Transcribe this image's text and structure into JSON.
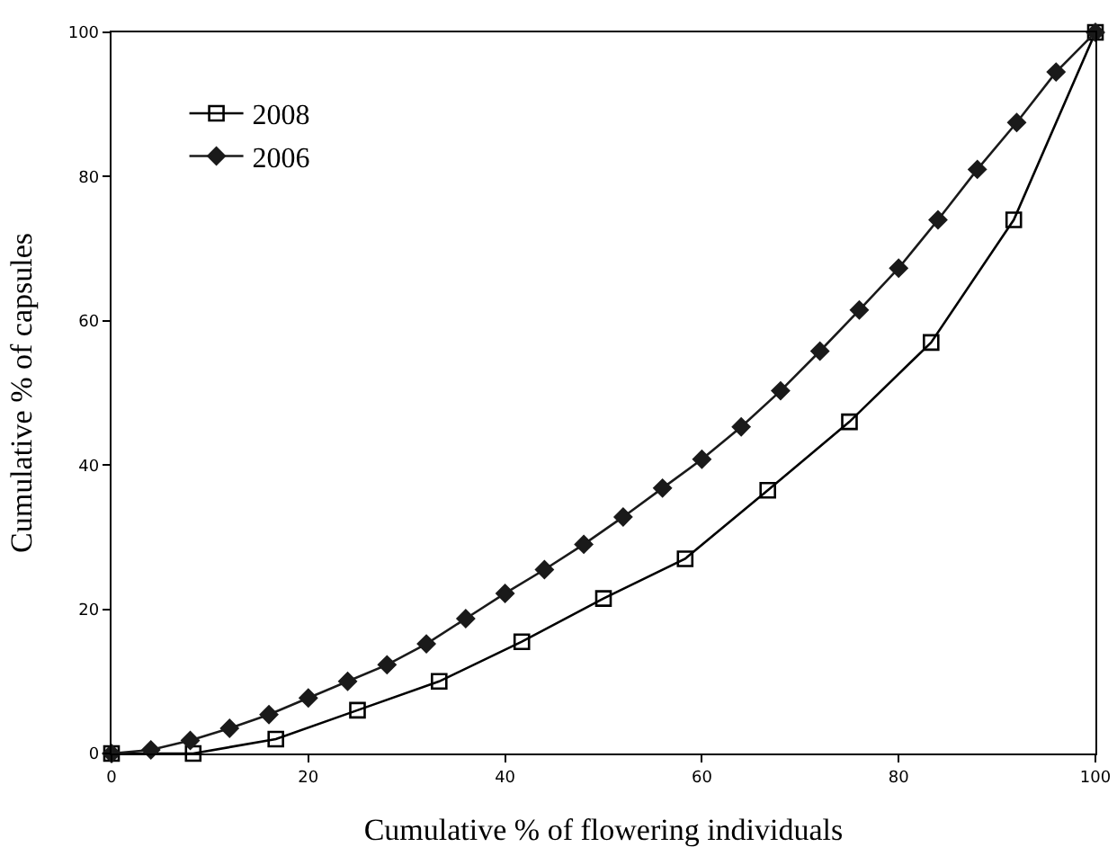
{
  "chart_data": {
    "type": "line",
    "xlabel": "Cumulative % of flowering individuals",
    "ylabel": "Cumulative % of capsules",
    "xlim": [
      0,
      100
    ],
    "xticks": [
      0,
      20,
      40,
      60,
      80,
      100
    ],
    "ylim": [
      0,
      100
    ],
    "yticks": [
      0,
      20,
      40,
      60,
      80,
      100
    ],
    "grid": false,
    "legend": "top left",
    "series": [
      {
        "name": "2008",
        "color": "#000000",
        "marker": "square",
        "x": [
          0,
          8.3,
          16.7,
          25,
          33.3,
          41.7,
          50,
          58.3,
          66.7,
          75,
          83.3,
          91.7,
          100
        ],
        "values": [
          0,
          0,
          2,
          6,
          10,
          15.5,
          21.5,
          27,
          36.5,
          46,
          57,
          74,
          100
        ]
      },
      {
        "name": "2006",
        "color": "#1a1a1a",
        "marker": "diamond",
        "x": [
          0,
          4,
          8,
          12,
          16,
          20,
          24,
          28,
          32,
          36,
          40,
          44,
          48,
          52,
          56,
          60,
          64,
          68,
          72,
          76,
          80,
          84,
          88,
          92,
          96,
          100
        ],
        "values": [
          0,
          0.5,
          1.8,
          3.5,
          5.4,
          7.7,
          10,
          12.3,
          15.2,
          18.7,
          22.2,
          25.5,
          29,
          32.8,
          36.8,
          40.8,
          45.3,
          50.3,
          55.8,
          61.5,
          67.3,
          74,
          81,
          87.5,
          94.5,
          100
        ]
      }
    ]
  }
}
